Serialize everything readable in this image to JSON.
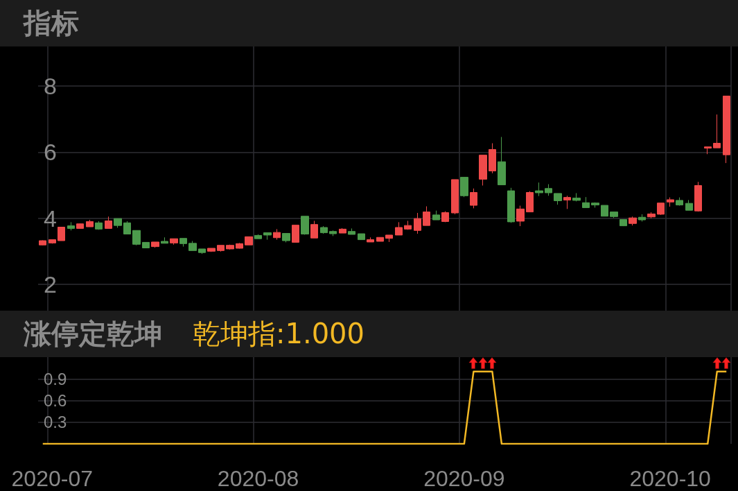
{
  "chart_data": [
    {
      "type": "candlestick",
      "title": "指标",
      "categories": [
        null,
        "2020-07",
        null,
        null,
        null,
        null,
        null,
        null,
        null,
        null,
        null,
        null,
        null,
        null,
        null,
        null,
        null,
        null,
        null,
        null,
        null,
        null,
        null,
        "2020-08",
        null,
        null,
        null,
        null,
        null,
        null,
        null,
        null,
        null,
        null,
        null,
        null,
        null,
        null,
        null,
        null,
        null,
        null,
        null,
        null,
        null,
        "2020-09",
        null,
        null,
        null,
        null,
        null,
        null,
        null,
        null,
        null,
        null,
        null,
        null,
        null,
        null,
        null,
        null,
        null,
        null,
        null,
        null,
        null,
        "2020-10",
        null,
        null,
        null,
        null,
        null,
        null
      ],
      "ohlc": [
        [
          3.19,
          3.33,
          3.18,
          3.32
        ],
        [
          3.25,
          3.35,
          3.23,
          3.35
        ],
        [
          3.32,
          3.73,
          3.32,
          3.73
        ],
        [
          3.77,
          3.88,
          3.63,
          3.69
        ],
        [
          3.69,
          3.84,
          3.69,
          3.83
        ],
        [
          3.74,
          3.95,
          3.74,
          3.9
        ],
        [
          3.86,
          3.91,
          3.65,
          3.67
        ],
        [
          3.69,
          4.05,
          3.69,
          3.92
        ],
        [
          3.99,
          3.99,
          3.71,
          3.78
        ],
        [
          3.86,
          3.91,
          3.52,
          3.52
        ],
        [
          3.63,
          3.63,
          3.18,
          3.21
        ],
        [
          3.27,
          3.27,
          3.1,
          3.1
        ],
        [
          3.14,
          3.28,
          3.11,
          3.28
        ],
        [
          3.3,
          3.42,
          3.24,
          3.24
        ],
        [
          3.25,
          3.38,
          3.2,
          3.38
        ],
        [
          3.39,
          3.39,
          3.14,
          3.23
        ],
        [
          3.24,
          3.31,
          3.02,
          3.02
        ],
        [
          3.07,
          3.07,
          2.92,
          2.96
        ],
        [
          3.0,
          3.09,
          2.98,
          3.09
        ],
        [
          3.02,
          3.18,
          2.99,
          3.18
        ],
        [
          3.07,
          3.2,
          3.05,
          3.18
        ],
        [
          3.09,
          3.25,
          3.08,
          3.23
        ],
        [
          3.19,
          3.44,
          3.19,
          3.44
        ],
        [
          3.48,
          3.51,
          3.38,
          3.38
        ],
        [
          3.56,
          3.56,
          3.35,
          3.49
        ],
        [
          3.41,
          3.67,
          3.35,
          3.57
        ],
        [
          3.54,
          3.54,
          3.27,
          3.32
        ],
        [
          3.27,
          3.79,
          3.27,
          3.79
        ],
        [
          4.06,
          4.06,
          3.5,
          3.52
        ],
        [
          3.4,
          3.92,
          3.4,
          3.81
        ],
        [
          3.72,
          3.76,
          3.53,
          3.56
        ],
        [
          3.6,
          3.63,
          3.46,
          3.53
        ],
        [
          3.55,
          3.7,
          3.55,
          3.67
        ],
        [
          3.6,
          3.69,
          3.51,
          3.51
        ],
        [
          3.53,
          3.53,
          3.35,
          3.35
        ],
        [
          3.28,
          3.42,
          3.28,
          3.35
        ],
        [
          3.3,
          3.42,
          3.3,
          3.42
        ],
        [
          3.39,
          3.49,
          3.28,
          3.49
        ],
        [
          3.49,
          3.88,
          3.49,
          3.72
        ],
        [
          3.67,
          3.92,
          3.65,
          3.78
        ],
        [
          3.63,
          4.16,
          3.53,
          3.99
        ],
        [
          3.78,
          4.36,
          3.78,
          4.19
        ],
        [
          4.1,
          4.23,
          3.95,
          3.95
        ],
        [
          3.9,
          4.21,
          3.88,
          4.17
        ],
        [
          4.16,
          5.17,
          4.12,
          5.17
        ],
        [
          5.24,
          5.24,
          4.64,
          4.68
        ],
        [
          4.39,
          4.9,
          4.3,
          4.78
        ],
        [
          5.18,
          5.91,
          4.99,
          5.91
        ],
        [
          5.43,
          6.27,
          5.36,
          6.08
        ],
        [
          5.71,
          6.46,
          5.01,
          5.01
        ],
        [
          4.83,
          4.92,
          3.86,
          3.89
        ],
        [
          3.91,
          4.38,
          3.76,
          4.28
        ],
        [
          4.19,
          4.82,
          4.19,
          4.78
        ],
        [
          4.83,
          5.08,
          4.67,
          4.77
        ],
        [
          4.9,
          5.03,
          4.68,
          4.77
        ],
        [
          4.75,
          4.75,
          4.41,
          4.53
        ],
        [
          4.55,
          4.68,
          4.28,
          4.63
        ],
        [
          4.61,
          4.76,
          4.51,
          4.54
        ],
        [
          4.47,
          4.64,
          4.32,
          4.32
        ],
        [
          4.46,
          4.48,
          4.32,
          4.4
        ],
        [
          4.39,
          4.39,
          4.06,
          4.06
        ],
        [
          4.19,
          4.19,
          4.01,
          4.05
        ],
        [
          3.96,
          3.96,
          3.76,
          3.77
        ],
        [
          3.84,
          4.05,
          3.78,
          4.01
        ],
        [
          4.03,
          4.12,
          3.9,
          3.95
        ],
        [
          4.04,
          4.18,
          4.0,
          4.13
        ],
        [
          4.12,
          4.46,
          4.1,
          4.46
        ],
        [
          4.49,
          4.63,
          4.35,
          4.56
        ],
        [
          4.54,
          4.63,
          4.38,
          4.4
        ],
        [
          4.45,
          4.55,
          4.24,
          4.24
        ],
        [
          4.22,
          5.1,
          4.2,
          4.99
        ],
        [
          6.12,
          6.16,
          5.94,
          6.16
        ],
        [
          6.13,
          7.14,
          6.13,
          6.27
        ],
        [
          5.92,
          7.7,
          5.67,
          7.7
        ]
      ],
      "colors": [
        "#f04a4a",
        "#f04a4a",
        "#f04a4a",
        "#4c9b4c",
        "#f04a4a",
        "#f04a4a",
        "#4c9b4c",
        "#f04a4a",
        "#4c9b4c",
        "#4c9b4c",
        "#4c9b4c",
        "#4c9b4c",
        "#f04a4a",
        "#4c9b4c",
        "#f04a4a",
        "#4c9b4c",
        "#4c9b4c",
        "#4c9b4c",
        "#f04a4a",
        "#f04a4a",
        "#f04a4a",
        "#f04a4a",
        "#f04a4a",
        "#4c9b4c",
        "#4c9b4c",
        "#f04a4a",
        "#4c9b4c",
        "#f04a4a",
        "#4c9b4c",
        "#f04a4a",
        "#4c9b4c",
        "#4c9b4c",
        "#f04a4a",
        "#4c9b4c",
        "#4c9b4c",
        "#f04a4a",
        "#f04a4a",
        "#f04a4a",
        "#f04a4a",
        "#f04a4a",
        "#f04a4a",
        "#f04a4a",
        "#4c9b4c",
        "#f04a4a",
        "#f04a4a",
        "#4c9b4c",
        "#f04a4a",
        "#f04a4a",
        "#f04a4a",
        "#4c9b4c",
        "#4c9b4c",
        "#f04a4a",
        "#f04a4a",
        "#4c9b4c",
        "#4c9b4c",
        "#4c9b4c",
        "#f04a4a",
        "#4c9b4c",
        "#4c9b4c",
        "#4c9b4c",
        "#4c9b4c",
        "#4c9b4c",
        "#4c9b4c",
        "#f04a4a",
        "#4c9b4c",
        "#f04a4a",
        "#f04a4a",
        "#f04a4a",
        "#4c9b4c",
        "#4c9b4c",
        "#f04a4a",
        "#f04a4a",
        "#f04a4a",
        "#f04a4a"
      ],
      "ylim": [
        1.2,
        9.2
      ],
      "yticks": [
        2,
        4,
        6,
        8
      ],
      "grid": true,
      "tick_labels": "y"
    },
    {
      "type": "line",
      "title": "涨停定乾坤",
      "categories": [
        null,
        "2020-07",
        null,
        null,
        null,
        null,
        null,
        null,
        null,
        null,
        null,
        null,
        null,
        null,
        null,
        null,
        null,
        null,
        null,
        null,
        null,
        null,
        null,
        "2020-08",
        null,
        null,
        null,
        null,
        null,
        null,
        null,
        null,
        null,
        null,
        null,
        null,
        null,
        null,
        null,
        null,
        null,
        null,
        null,
        null,
        null,
        "2020-09",
        null,
        null,
        null,
        null,
        null,
        null,
        null,
        null,
        null,
        null,
        null,
        null,
        null,
        null,
        null,
        null,
        null,
        null,
        null,
        null,
        null,
        "2020-10",
        null,
        null,
        null,
        null,
        null,
        null
      ],
      "series": [
        {
          "name": "乾坤指:1.000",
          "color": "#f2b824",
          "values": [
            0,
            0,
            0,
            0,
            0,
            0,
            0,
            0,
            0,
            0,
            0,
            0,
            0,
            0,
            0,
            0,
            0,
            0,
            0,
            0,
            0,
            0,
            0,
            0,
            0,
            0,
            0,
            0,
            0,
            0,
            0,
            0,
            0,
            0,
            0,
            0,
            0,
            0,
            0,
            0,
            0,
            0,
            0,
            0,
            0,
            0,
            1,
            1,
            1,
            0,
            0,
            0,
            0,
            0,
            0,
            0,
            0,
            0,
            0,
            0,
            0,
            0,
            0,
            0,
            0,
            0,
            0,
            0,
            0,
            0,
            0,
            0,
            1,
            1
          ]
        }
      ],
      "ylim": [
        0,
        1.2
      ],
      "yticks": [
        0.3,
        0.6,
        0.9
      ],
      "grid": true,
      "marker": "none"
    }
  ]
}
